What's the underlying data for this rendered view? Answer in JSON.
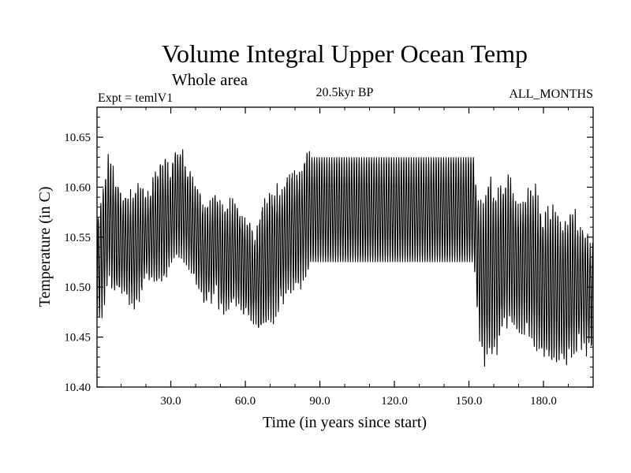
{
  "chart_data": {
    "type": "line",
    "title": "Volume Integral Upper Ocean Temp",
    "subtitle": "Whole area",
    "left_annotation": "Expt = temlV1",
    "center_annotation": "20.5kyr BP",
    "right_annotation": "ALL_MONTHS",
    "xlabel": "Time (in years since start)",
    "ylabel": "Temperature (in C)",
    "xlim": [
      0.3,
      200
    ],
    "ylim": [
      10.4,
      10.68
    ],
    "x_ticks": [
      {
        "value": 30,
        "label": "30.0"
      },
      {
        "value": 60,
        "label": "60.0"
      },
      {
        "value": 90,
        "label": "90.0"
      },
      {
        "value": 120,
        "label": "120.0"
      },
      {
        "value": 150,
        "label": "150.0"
      },
      {
        "value": 180,
        "label": "180.0"
      }
    ],
    "y_ticks": [
      {
        "value": 10.4,
        "label": "10.40"
      },
      {
        "value": 10.45,
        "label": "10.45"
      },
      {
        "value": 10.5,
        "label": "10.50"
      },
      {
        "value": 10.55,
        "label": "10.55"
      },
      {
        "value": 10.6,
        "label": "10.60"
      },
      {
        "value": 10.65,
        "label": "10.65"
      }
    ],
    "series_color": "#000000",
    "annual_cycle_envelope": {
      "x": [
        0.5,
        3,
        5,
        8,
        12,
        15,
        18,
        20,
        24,
        28,
        30,
        33,
        36,
        40,
        44,
        48,
        51,
        55,
        60,
        64,
        66,
        70,
        74,
        78,
        82,
        84,
        85.5,
        86,
        100,
        120,
        140,
        152,
        153,
        155,
        158,
        162,
        166,
        170,
        175,
        180,
        184,
        188,
        192,
        196,
        200
      ],
      "max": [
        10.57,
        10.61,
        10.64,
        10.61,
        10.59,
        10.6,
        10.61,
        10.59,
        10.62,
        10.63,
        10.62,
        10.645,
        10.63,
        10.61,
        10.58,
        10.6,
        10.58,
        10.59,
        10.575,
        10.55,
        10.58,
        10.6,
        10.6,
        10.62,
        10.62,
        10.635,
        10.648,
        10.63,
        10.63,
        10.63,
        10.63,
        10.63,
        10.6,
        10.59,
        10.615,
        10.6,
        10.615,
        10.59,
        10.605,
        10.58,
        10.585,
        10.57,
        10.58,
        10.56,
        10.55
      ],
      "min": [
        10.46,
        10.48,
        10.5,
        10.49,
        10.49,
        10.48,
        10.49,
        10.51,
        10.5,
        10.51,
        10.52,
        10.53,
        10.52,
        10.5,
        10.48,
        10.49,
        10.47,
        10.48,
        10.47,
        10.46,
        10.45,
        10.46,
        10.48,
        10.49,
        10.5,
        10.51,
        10.51,
        10.525,
        10.525,
        10.525,
        10.525,
        10.525,
        10.48,
        10.43,
        10.42,
        10.44,
        10.46,
        10.45,
        10.45,
        10.43,
        10.42,
        10.42,
        10.43,
        10.44,
        10.43
      ]
    }
  }
}
